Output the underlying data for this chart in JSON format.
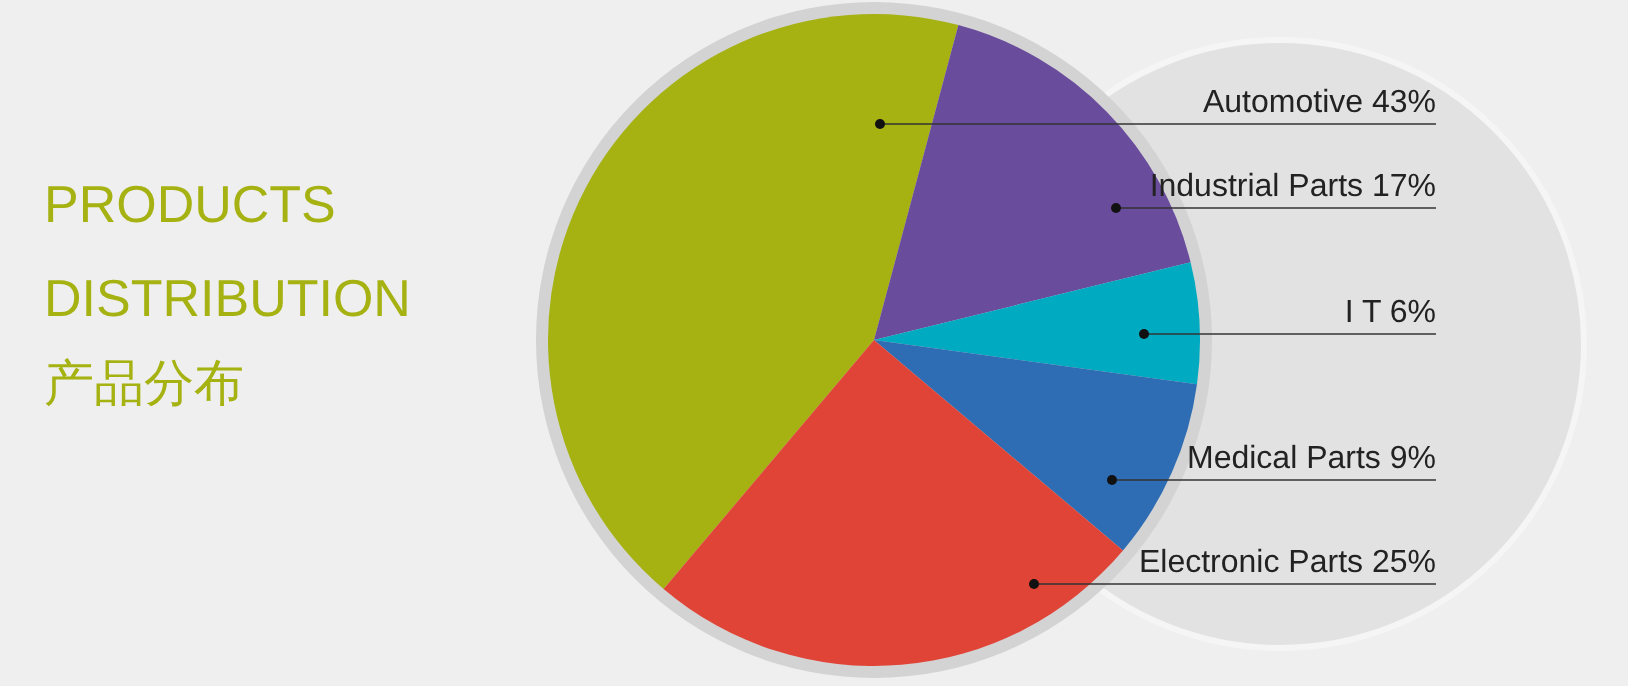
{
  "chart_data": {
    "type": "pie",
    "title": "PRODUCTS DISTRIBUTION",
    "subtitle": "产品分布",
    "categories": [
      "Automotive",
      "Industrial Parts",
      "I T",
      "Medical Parts",
      "Electronic Parts"
    ],
    "values": [
      43,
      17,
      6,
      9,
      25
    ],
    "colors": [
      "#a5b212",
      "#6a4c9c",
      "#00aac0",
      "#2e6db4",
      "#e04437"
    ],
    "value_labels": [
      "43%",
      "17%",
      "6%",
      "9%",
      "25%"
    ]
  }
}
